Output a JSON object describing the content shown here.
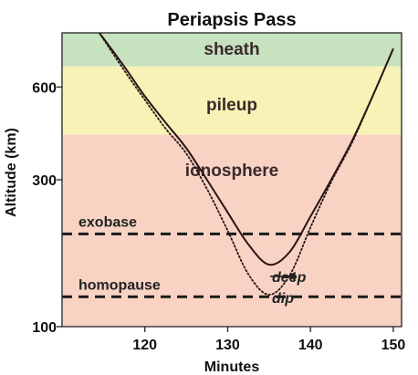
{
  "chart_data": {
    "type": "line",
    "title": "Periapsis Pass",
    "xlabel": "Minutes",
    "ylabel": "Altitude (km)",
    "xlim": [
      110,
      151
    ],
    "y_scale": "log",
    "ylim": [
      100,
      900
    ],
    "xticks": [
      120,
      130,
      140,
      150
    ],
    "yticks": [
      100,
      300,
      600
    ],
    "grid": false,
    "regions": [
      {
        "label": "sheath",
        "from": 700,
        "to": 900,
        "color": "#c6e2bf"
      },
      {
        "label": "pileup",
        "from": 420,
        "to": 700,
        "color": "#f7f3b6"
      },
      {
        "label": "ionosphere",
        "from": 100,
        "to": 420,
        "color": "#f8d3c4"
      }
    ],
    "reference_lines": [
      {
        "label": "exobase",
        "y": 200
      },
      {
        "label": "homopause",
        "y": 125
      }
    ],
    "annotation": {
      "text_line1": "deep",
      "text_line2": "dip",
      "target_x": 135.2,
      "target_y": 138
    },
    "series": [
      {
        "style": "solid",
        "x": [
          114.5,
          117.5,
          120,
          122.5,
          125,
          127.5,
          130,
          132.5,
          135,
          137.5,
          140,
          142.5,
          145,
          147.5,
          150
        ],
        "y": [
          900,
          700,
          560,
          460,
          380,
          300,
          235,
          185,
          159,
          175,
          228,
          300,
          400,
          560,
          800
        ]
      },
      {
        "style": "dotted",
        "x": [
          114.5,
          117.5,
          120,
          122.5,
          125,
          127.5,
          130,
          132.5,
          135,
          137.5,
          140,
          142.5,
          145,
          147.5,
          150
        ],
        "y": [
          900,
          680,
          545,
          440,
          365,
          280,
          205,
          148,
          127,
          147,
          210,
          295,
          395,
          560,
          800
        ]
      }
    ]
  }
}
